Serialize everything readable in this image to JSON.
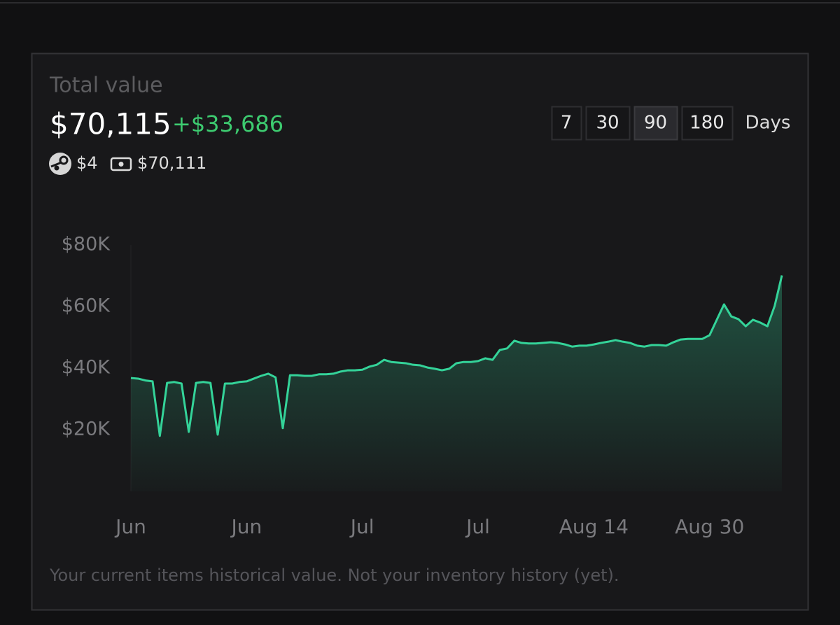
{
  "header": {
    "title": "Total value",
    "total": "$70,115",
    "change": "+$33,686",
    "steam_value": "$4",
    "cash_value": "$70,111",
    "range_buttons": [
      "7",
      "30",
      "90",
      "180"
    ],
    "active_button": 2,
    "range_unit": "Days"
  },
  "chart_data": {
    "type": "area",
    "categories": [
      "Jun",
      null,
      null,
      null,
      null,
      null,
      null,
      null,
      null,
      null,
      null,
      null,
      null,
      null,
      null,
      null,
      "Jun",
      null,
      null,
      null,
      null,
      null,
      null,
      null,
      null,
      null,
      null,
      null,
      null,
      null,
      null,
      null,
      "Jul",
      null,
      null,
      null,
      null,
      null,
      null,
      null,
      null,
      null,
      null,
      null,
      null,
      null,
      null,
      null,
      "Jul",
      null,
      null,
      null,
      null,
      null,
      null,
      null,
      null,
      null,
      null,
      null,
      null,
      null,
      null,
      null,
      "Aug 14",
      null,
      null,
      null,
      null,
      null,
      null,
      null,
      null,
      null,
      null,
      null,
      null,
      null,
      null,
      null,
      "Aug 30",
      null,
      null,
      null,
      null,
      null,
      null,
      null,
      null,
      null,
      null
    ],
    "values": [
      36800,
      36600,
      36000,
      35700,
      18000,
      35200,
      35500,
      35000,
      19300,
      35200,
      35500,
      35200,
      18400,
      35000,
      35000,
      35500,
      35700,
      36600,
      37500,
      38200,
      37000,
      20500,
      37700,
      37700,
      37500,
      37500,
      38000,
      38000,
      38200,
      38900,
      39300,
      39300,
      39500,
      40500,
      41100,
      42700,
      42000,
      41800,
      41600,
      41100,
      40900,
      40200,
      39800,
      39300,
      39800,
      41600,
      42000,
      42000,
      42300,
      43200,
      42700,
      45900,
      46400,
      48900,
      48200,
      48000,
      48000,
      48200,
      48400,
      48200,
      47700,
      47000,
      47300,
      47300,
      47700,
      48200,
      48600,
      49100,
      48600,
      48200,
      47300,
      47000,
      47500,
      47500,
      47300,
      48400,
      49300,
      49500,
      49500,
      49500,
      50700,
      55700,
      60700,
      56800,
      55900,
      53600,
      55700,
      54800,
      53600,
      60200,
      70115
    ],
    "color": "#34d399",
    "ylim": [
      0,
      80000
    ],
    "yticks": [
      {
        "value": 20000,
        "label": "$20K"
      },
      {
        "value": 40000,
        "label": "$40K"
      },
      {
        "value": 60000,
        "label": "$60K"
      },
      {
        "value": 80000,
        "label": "$80K"
      }
    ],
    "grid": false
  },
  "footer": "Your current items historical value. Not your inventory history (yet)."
}
